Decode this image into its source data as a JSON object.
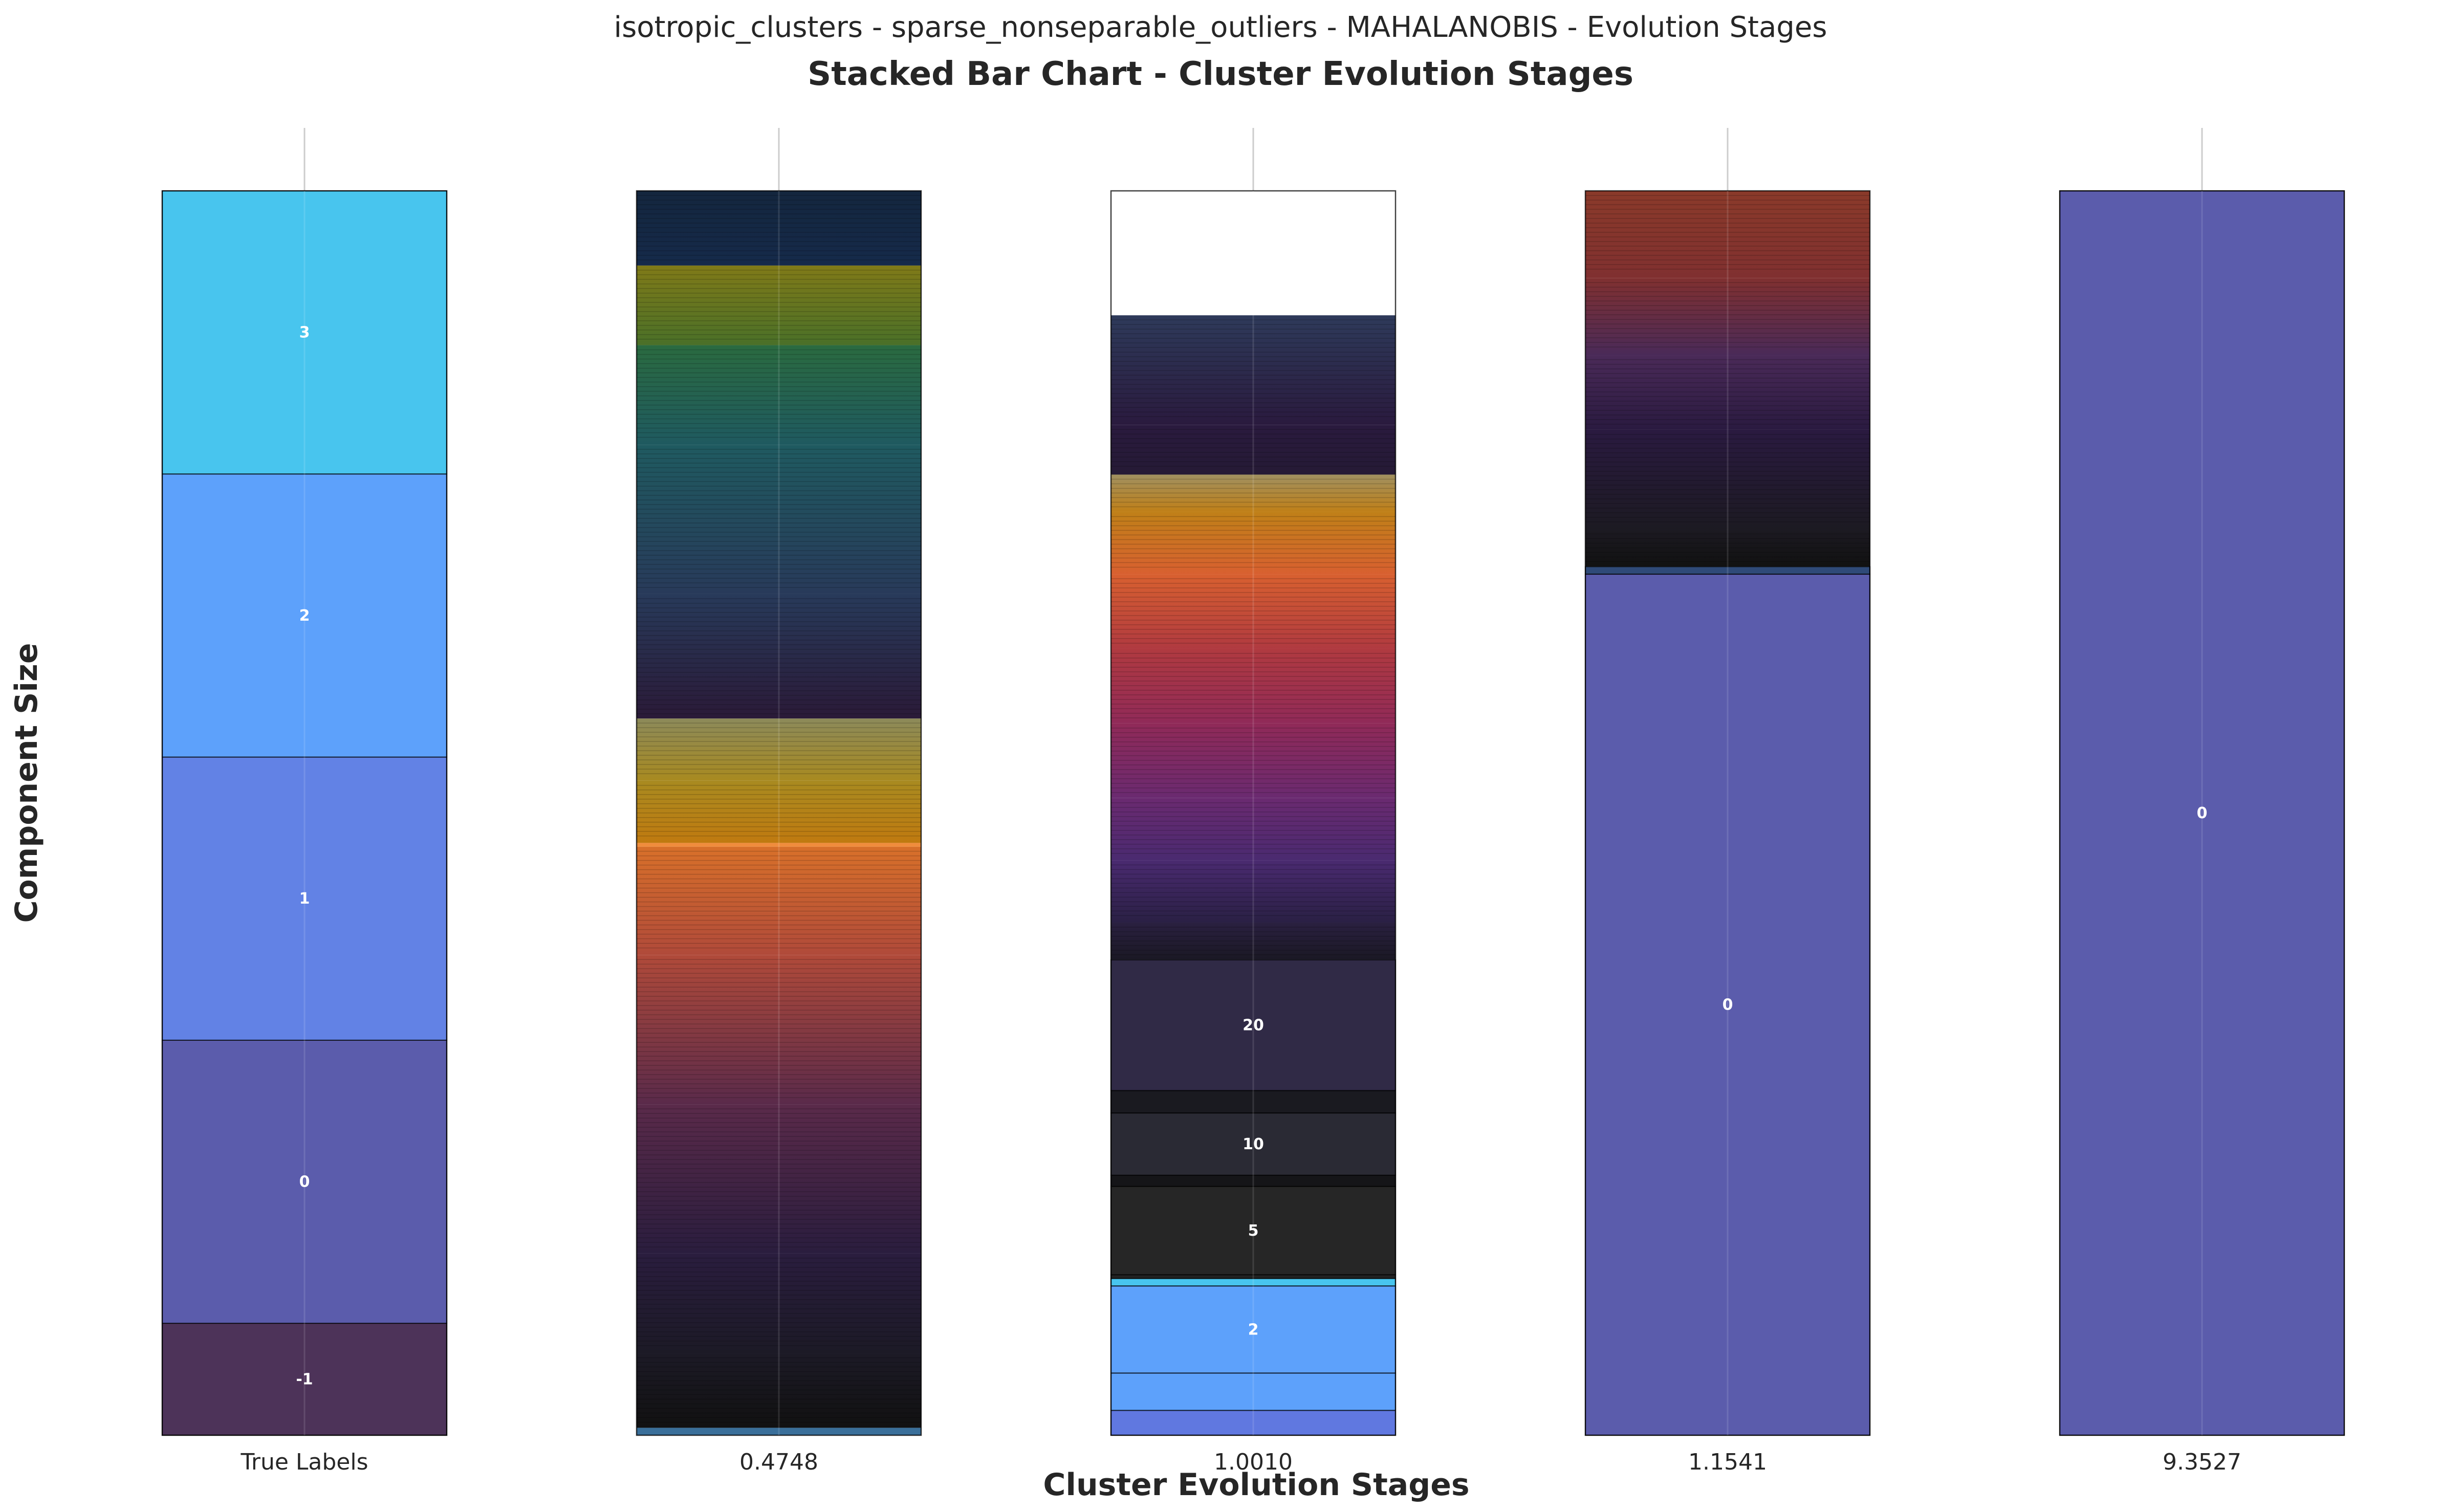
{
  "chart_data": {
    "type": "bar",
    "suptitle": "isotropic_clusters - sparse_nonseparable_outliers - MAHALANOBIS - Evolution Stages",
    "title": "Stacked Bar Chart - Cluster Evolution Stages",
    "xlabel": "Cluster Evolution Stages",
    "ylabel": "Component Size",
    "stacked": true,
    "grid": true,
    "categories": [
      "True Labels",
      "0.4748",
      "1.0010",
      "1.1541",
      "9.3527"
    ],
    "bars": [
      {
        "category": "True Labels",
        "segments": [
          {
            "label": "-1",
            "size": 0.09,
            "color": "#4d3359"
          },
          {
            "label": "0",
            "size": 0.2275,
            "color": "#5b5cac"
          },
          {
            "label": "1",
            "size": 0.2275,
            "color": "#6282e5"
          },
          {
            "label": "2",
            "size": 0.2275,
            "color": "#5da1fb"
          },
          {
            "label": "3",
            "size": 0.2275,
            "color": "#48c5ee"
          }
        ]
      },
      {
        "category": "0.4748",
        "gradient_segments": [
          {
            "size": 0.006,
            "colors": [
              "#3a6f9a",
              "#3a6f9a"
            ]
          },
          {
            "size": 0.06,
            "colors": [
              "#111111",
              "#1c1a26"
            ]
          },
          {
            "size": 0.08,
            "colors": [
              "#1c1a26",
              "#2a1d3e"
            ]
          },
          {
            "size": 0.12,
            "colors": [
              "#2a1d3e",
              "#5a2a4a"
            ]
          },
          {
            "size": 0.12,
            "colors": [
              "#5a2a4a",
              "#b04a3a"
            ]
          },
          {
            "size": 0.087,
            "colors": [
              "#b04a3a",
              "#d8702a"
            ]
          },
          {
            "size": 0.003,
            "colors": [
              "#f08c3c",
              "#f08c3c"
            ]
          },
          {
            "size": 0.05,
            "colors": [
              "#c07a10",
              "#a88a20"
            ]
          },
          {
            "size": 0.05,
            "colors": [
              "#a88a20",
              "#8c8a5a"
            ]
          },
          {
            "size": 0.1,
            "colors": [
              "#2a1a38",
              "#283a5a"
            ]
          },
          {
            "size": 0.12,
            "colors": [
              "#283a5a",
              "#1f5a60"
            ]
          },
          {
            "size": 0.08,
            "colors": [
              "#1f5a60",
              "#2a6a40"
            ]
          },
          {
            "size": 0.064,
            "colors": [
              "#4a7028",
              "#807a18"
            ]
          },
          {
            "size": 0.06,
            "colors": [
              "#152a4a",
              "#14263e"
            ]
          }
        ]
      },
      {
        "category": "1.0010",
        "segment_list": [
          {
            "size": 0.02,
            "color": "#6078e0",
            "label": ""
          },
          {
            "size": 0.03,
            "color": "#5da1fb",
            "label": ""
          },
          {
            "size": 0.07,
            "color": "#5da1fb",
            "label": "2"
          },
          {
            "size": 0.006,
            "color": "#48c5ee",
            "label": ""
          },
          {
            "size": 0.003,
            "color": "#222222",
            "label": ""
          },
          {
            "size": 0.071,
            "color": "#262626",
            "label": "5"
          },
          {
            "size": 0.009,
            "color": "#151518",
            "label": ""
          },
          {
            "size": 0.05,
            "color": "#2a2a34",
            "label": "10"
          },
          {
            "size": 0.018,
            "color": "#1a1a20",
            "label": ""
          },
          {
            "size": 0.105,
            "color": "#302a46",
            "label": "20"
          }
        ],
        "gradient_segments": [
          {
            "size": 0.03,
            "colors": [
              "#1a1824",
              "#2a2040"
            ]
          },
          {
            "size": 0.05,
            "colors": [
              "#2a2044",
              "#4a2a70"
            ]
          },
          {
            "size": 0.05,
            "colors": [
              "#4a2a70",
              "#6a2a70"
            ]
          },
          {
            "size": 0.06,
            "colors": [
              "#6a2a70",
              "#902a58"
            ]
          },
          {
            "size": 0.06,
            "colors": [
              "#902a58",
              "#b03a40"
            ]
          },
          {
            "size": 0.06,
            "colors": [
              "#b03a40",
              "#d86030"
            ]
          },
          {
            "size": 0.05,
            "colors": [
              "#d86030",
              "#c08018"
            ]
          },
          {
            "size": 0.03,
            "colors": [
              "#c08018",
              "#a09060"
            ]
          },
          {
            "size": 0.04,
            "colors": [
              "#251a35",
              "#2a1a3e"
            ]
          },
          {
            "size": 0.088,
            "colors": [
              "#2a1a3e",
              "#2e3a5a"
            ]
          }
        ]
      },
      {
        "category": "1.1541",
        "segment_list": [
          {
            "size": 0.692,
            "color": "#5b5cac",
            "label": "0"
          },
          {
            "size": 0.006,
            "color": "#2f4a78",
            "label": ""
          }
        ],
        "gradient_segments": [
          {
            "size": 0.03,
            "colors": [
              "#111111",
              "#1c1a22"
            ]
          },
          {
            "size": 0.08,
            "colors": [
              "#1c1a22",
              "#2a1a40"
            ]
          },
          {
            "size": 0.06,
            "colors": [
              "#2a1a40",
              "#4a2a58"
            ]
          },
          {
            "size": 0.062,
            "colors": [
              "#4a2a58",
              "#803030"
            ]
          },
          {
            "size": 0.07,
            "colors": [
              "#803030",
              "#8a3a2a"
            ]
          }
        ]
      },
      {
        "category": "9.3527",
        "segments": [
          {
            "label": "0",
            "size": 1.0,
            "color": "#5b5cac"
          }
        ]
      }
    ]
  }
}
